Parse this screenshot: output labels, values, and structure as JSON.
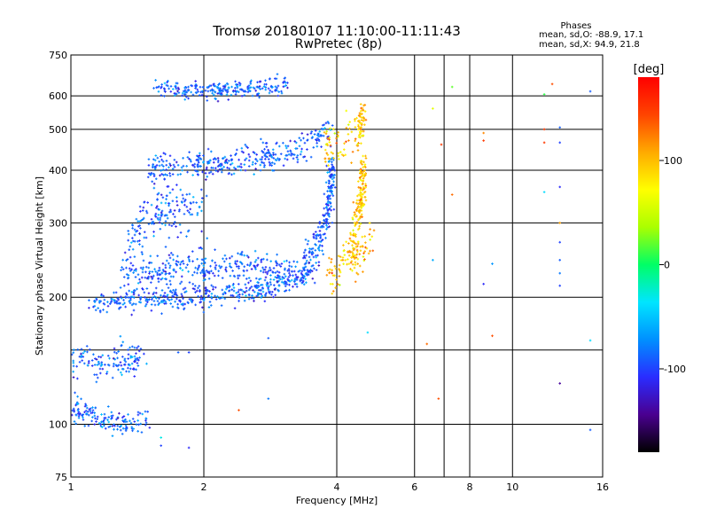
{
  "chart_data": {
    "type": "scatter",
    "title": "Tromsø 20180107 11:10:00-11:11:43",
    "subtitle": "RwPretec (8p)",
    "xlabel": "Frequency [MHz]",
    "ylabel": "Stationary phase Virtual Height [km]",
    "xscale": "log",
    "yscale": "log",
    "xlim": [
      1,
      16
    ],
    "ylim": [
      75,
      750
    ],
    "x_ticks": [
      1,
      2,
      4,
      6,
      8,
      10,
      16
    ],
    "x_tick_labels": [
      "1",
      "2",
      "4",
      "6",
      "8",
      "10",
      "16"
    ],
    "x_minor_grid": [
      7
    ],
    "y_ticks": [
      75,
      100,
      200,
      300,
      400,
      500,
      600,
      750
    ],
    "y_tick_labels": [
      "75",
      "100",
      "200",
      "300",
      "400",
      "500",
      "600",
      "750"
    ],
    "y_minor_grid": [
      150
    ],
    "grid": true,
    "colorbar": {
      "label": "[deg]",
      "range": [
        -180,
        180
      ],
      "ticks": [
        -100,
        0,
        100
      ],
      "tick_labels": [
        "-100",
        "0",
        "100"
      ],
      "colors": [
        "#000000",
        "#4a0090",
        "#2a2cff",
        "#0090ff",
        "#00e5ff",
        "#00ff66",
        "#aaff00",
        "#ffff00",
        "#ffaa00",
        "#ff4400",
        "#ff0000"
      ]
    },
    "phase_stats": {
      "heading": "Phases",
      "line_o": "mean, sd,O: -88.9, 17.1",
      "line_x": "mean, sd,X: 94.9, 21.8"
    },
    "series": [
      {
        "mode": "O",
        "phase_mean": -88.9,
        "phase_sd": 17.1,
        "segments": [
          {
            "x": [
              1.0,
              1.15,
              1.3,
              1.5
            ],
            "y": [
              110,
              104,
              101,
              104
            ],
            "spread": 0.035
          },
          {
            "x": [
              1.0,
              1.1,
              1.22,
              1.45
            ],
            "y": [
              145,
              142,
              138,
              145
            ],
            "spread": 0.05
          },
          {
            "x": [
              1.1,
              1.25,
              1.5,
              1.8,
              2.1,
              2.6,
              3.0,
              3.35,
              3.6
            ],
            "y": [
              190,
              196,
              198,
              201,
              203,
              208,
              215,
              228,
              240
            ],
            "spread": 0.035
          },
          {
            "x": [
              1.3,
              1.6,
              2.0,
              2.5,
              3.0,
              3.4
            ],
            "y": [
              226,
              230,
              236,
              238,
              228,
              226
            ],
            "spread": 0.045
          },
          {
            "x": [
              1.35,
              1.45,
              1.6,
              1.8,
              2.0
            ],
            "y": [
              270,
              300,
              310,
              330,
              340
            ],
            "spread": 0.07
          },
          {
            "x": [
              1.5,
              1.75,
              2.0,
              2.4,
              2.9,
              3.3,
              3.6,
              3.85
            ],
            "y": [
              402,
              406,
              412,
              420,
              432,
              450,
              470,
              505
            ],
            "spread": 0.04
          },
          {
            "x": [
              3.4,
              3.6,
              3.75,
              3.85,
              3.9
            ],
            "y": [
              250,
              265,
              290,
              330,
              420
            ],
            "spread": 0.05
          },
          {
            "x": [
              1.55,
              1.8,
              2.2,
              2.7,
              3.1
            ],
            "y": [
              625,
              615,
              620,
              628,
              640
            ],
            "spread": 0.025
          }
        ]
      },
      {
        "mode": "X",
        "phase_mean": 94.9,
        "phase_sd": 21.8,
        "segments": [
          {
            "x": [
              3.8,
              4.05,
              4.3,
              4.55,
              4.8
            ],
            "y": [
              225,
              234,
              245,
              258,
              272
            ],
            "spread": 0.05
          },
          {
            "x": [
              4.3,
              4.45,
              4.55,
              4.62
            ],
            "y": [
              260,
              300,
              350,
              420
            ],
            "spread": 0.06
          },
          {
            "x": [
              3.75,
              4.1,
              4.5,
              4.6
            ],
            "y": [
              450,
              470,
              490,
              560
            ],
            "spread": 0.05
          }
        ]
      }
    ],
    "isolated_points": [
      {
        "x": 6.6,
        "y": 560,
        "phase": 60
      },
      {
        "x": 6.9,
        "y": 460,
        "phase": 150
      },
      {
        "x": 7.3,
        "y": 350,
        "phase": 130
      },
      {
        "x": 6.6,
        "y": 245,
        "phase": -60
      },
      {
        "x": 6.4,
        "y": 155,
        "phase": 130
      },
      {
        "x": 6.8,
        "y": 115,
        "phase": 140
      },
      {
        "x": 7.3,
        "y": 630,
        "phase": 20
      },
      {
        "x": 8.6,
        "y": 490,
        "phase": 120
      },
      {
        "x": 8.6,
        "y": 470,
        "phase": 150
      },
      {
        "x": 9.0,
        "y": 240,
        "phase": -70
      },
      {
        "x": 8.6,
        "y": 215,
        "phase": -110
      },
      {
        "x": 9.0,
        "y": 162,
        "phase": 140
      },
      {
        "x": 11.8,
        "y": 605,
        "phase": 10
      },
      {
        "x": 12.3,
        "y": 640,
        "phase": 140
      },
      {
        "x": 11.8,
        "y": 500,
        "phase": 150
      },
      {
        "x": 12.8,
        "y": 505,
        "phase": -90
      },
      {
        "x": 12.8,
        "y": 465,
        "phase": -100
      },
      {
        "x": 11.8,
        "y": 465,
        "phase": 150
      },
      {
        "x": 11.8,
        "y": 355,
        "phase": -40
      },
      {
        "x": 12.8,
        "y": 365,
        "phase": -110
      },
      {
        "x": 12.8,
        "y": 300,
        "phase": 110
      },
      {
        "x": 12.8,
        "y": 270,
        "phase": -100
      },
      {
        "x": 12.8,
        "y": 245,
        "phase": -90
      },
      {
        "x": 12.8,
        "y": 228,
        "phase": -80
      },
      {
        "x": 12.8,
        "y": 213,
        "phase": -100
      },
      {
        "x": 12.8,
        "y": 125,
        "phase": -140
      },
      {
        "x": 15.0,
        "y": 615,
        "phase": -90
      },
      {
        "x": 15.0,
        "y": 158,
        "phase": -40
      },
      {
        "x": 15.0,
        "y": 97,
        "phase": -90
      },
      {
        "x": 12.8,
        "y": 75,
        "phase": 140
      },
      {
        "x": 4.4,
        "y": 75,
        "phase": -100
      },
      {
        "x": 4.7,
        "y": 165,
        "phase": -40
      },
      {
        "x": 2.8,
        "y": 160,
        "phase": -90
      },
      {
        "x": 2.8,
        "y": 115,
        "phase": -80
      },
      {
        "x": 2.4,
        "y": 108,
        "phase": 140
      },
      {
        "x": 1.75,
        "y": 148,
        "phase": -90
      },
      {
        "x": 1.85,
        "y": 148,
        "phase": -100
      },
      {
        "x": 1.6,
        "y": 93,
        "phase": -30
      },
      {
        "x": 1.6,
        "y": 89,
        "phase": -100
      },
      {
        "x": 1.85,
        "y": 88,
        "phase": -110
      },
      {
        "x": 2.8,
        "y": 75,
        "phase": -40
      }
    ]
  }
}
